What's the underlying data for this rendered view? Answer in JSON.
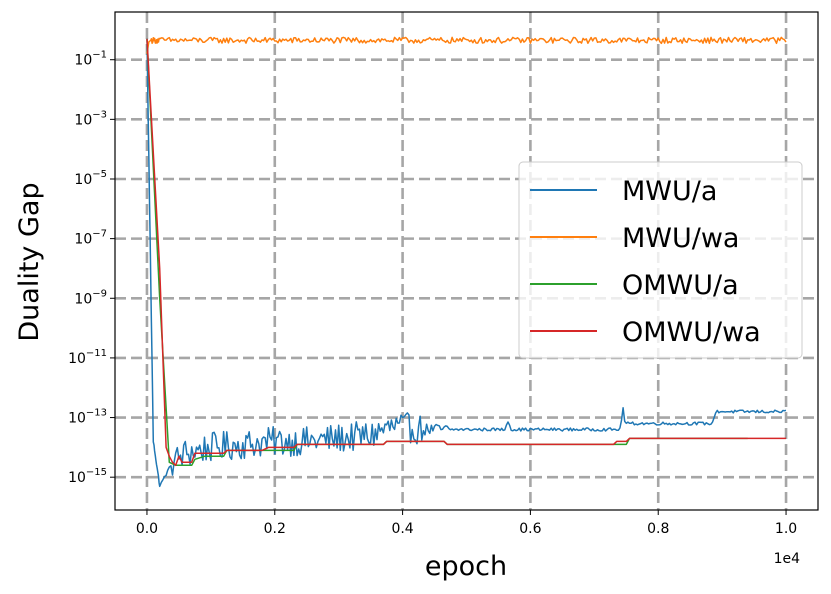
{
  "chart_data": {
    "type": "line",
    "xlabel": "epoch",
    "ylabel": "Duality Gap",
    "x_offset_label": "1e4",
    "xlim": [
      -500,
      10500
    ],
    "ylim_log10": [
      -16.1,
      0.6
    ],
    "yscale": "log",
    "grid": true,
    "legend_position": "center-right",
    "x_ticks": [
      {
        "value": 0,
        "label": "0.0"
      },
      {
        "value": 2000,
        "label": "0.2"
      },
      {
        "value": 4000,
        "label": "0.4"
      },
      {
        "value": 6000,
        "label": "0.6"
      },
      {
        "value": 8000,
        "label": "0.8"
      },
      {
        "value": 10000,
        "label": "1.0"
      }
    ],
    "y_ticks": [
      {
        "exp": -1,
        "label": "10",
        "sup": "−1"
      },
      {
        "exp": -3,
        "label": "10",
        "sup": "−3"
      },
      {
        "exp": -5,
        "label": "10",
        "sup": "−5"
      },
      {
        "exp": -7,
        "label": "10",
        "sup": "−7"
      },
      {
        "exp": -9,
        "label": "10",
        "sup": "−9"
      },
      {
        "exp": -11,
        "label": "10",
        "sup": "−11"
      },
      {
        "exp": -13,
        "label": "10",
        "sup": "−13"
      },
      {
        "exp": -15,
        "label": "10",
        "sup": "−15"
      }
    ],
    "series": [
      {
        "name": "MWU/a",
        "color": "#1f77b4",
        "noise": 0.5,
        "x": [
          0,
          20,
          60,
          100,
          200,
          400,
          600,
          1000,
          1500,
          2000,
          2500,
          3000,
          3500,
          3700,
          3900,
          4300,
          4650,
          4700,
          5600,
          5650,
          5700,
          7400,
          7450,
          7480,
          7550,
          8850,
          8900,
          9400,
          10000
        ],
        "log10y": [
          -0.3,
          -3.0,
          -8.5,
          -13.8,
          -15.3,
          -14.5,
          -14.2,
          -14.0,
          -13.9,
          -13.8,
          -13.8,
          -13.7,
          -13.6,
          -13.4,
          -13.3,
          -13.4,
          -13.4,
          -13.4,
          -13.4,
          -13.1,
          -13.4,
          -13.4,
          -12.7,
          -13.2,
          -13.2,
          -13.2,
          -12.8,
          -12.8,
          -12.8
        ]
      },
      {
        "name": "MWU/wa",
        "color": "#ff7f0e",
        "noise": 0.1,
        "x": [
          0,
          30,
          60,
          100,
          500,
          1000,
          3000,
          5000,
          7000,
          9000,
          10000
        ],
        "log10y": [
          -0.8,
          -0.4,
          -0.35,
          -0.35,
          -0.35,
          -0.35,
          -0.35,
          -0.35,
          -0.35,
          -0.35,
          -0.35
        ]
      },
      {
        "name": "OMWU/a",
        "color": "#2ca02c",
        "noise": 0,
        "x": [
          0,
          200,
          350,
          450,
          700,
          750,
          900,
          1200,
          1250,
          1800,
          1900,
          2300,
          2350,
          3700,
          3750,
          4650,
          4700,
          7200,
          7250,
          7500,
          7550,
          9400
        ],
        "log10y": [
          -0.3,
          -9.0,
          -14.5,
          -14.6,
          -14.6,
          -14.4,
          -14.3,
          -14.3,
          -14.1,
          -14.1,
          -14.1,
          -14.1,
          -13.9,
          -13.9,
          -13.8,
          -13.8,
          -13.9,
          -13.9,
          -13.9,
          -13.9,
          -13.7,
          -13.7
        ]
      },
      {
        "name": "OMWU/wa",
        "color": "#d62728",
        "noise": 0,
        "x": [
          0,
          200,
          300,
          350,
          400,
          450,
          500,
          550,
          700,
          750,
          900,
          1200,
          1250,
          1800,
          1900,
          2300,
          2350,
          3700,
          3750,
          4650,
          4700,
          7300,
          7350,
          7500,
          7550,
          9350,
          9400,
          10000
        ],
        "log10y": [
          -0.3,
          -8.0,
          -14.0,
          -14.3,
          -14.5,
          -14.6,
          -14.3,
          -14.5,
          -14.5,
          -14.2,
          -14.2,
          -14.2,
          -14.1,
          -14.1,
          -14.0,
          -14.0,
          -13.9,
          -13.9,
          -13.8,
          -13.8,
          -13.9,
          -13.9,
          -13.8,
          -13.8,
          -13.7,
          -13.7,
          -13.7,
          -13.7
        ]
      }
    ]
  }
}
